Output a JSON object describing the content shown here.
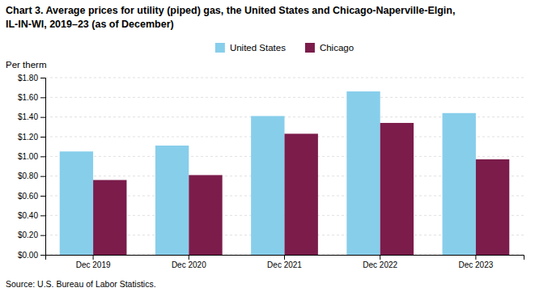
{
  "chart_data": {
    "type": "bar",
    "title": [
      "Chart 3. Average prices for utility (piped) gas, the United States and Chicago-Naperville-Elgin,",
      "IL-IN-WI, 2019–23 (as of December)"
    ],
    "ylabel": "Per therm",
    "source": "Source: U.S. Bureau of Labor Statistics.",
    "categories": [
      "Dec 2019",
      "Dec 2020",
      "Dec 2021",
      "Dec 2022",
      "Dec 2023"
    ],
    "series": [
      {
        "name": "United States",
        "color": "#87CEEB",
        "values": [
          1.05,
          1.11,
          1.41,
          1.66,
          1.44
        ]
      },
      {
        "name": "Chicago",
        "color": "#7B1C4B",
        "values": [
          0.76,
          0.81,
          1.23,
          1.34,
          0.97
        ]
      }
    ],
    "ylim": [
      0,
      1.8
    ],
    "yticks": [
      {
        "value": 0.0,
        "label": "$0.00"
      },
      {
        "value": 0.2,
        "label": "$0.20"
      },
      {
        "value": 0.4,
        "label": "$0.40"
      },
      {
        "value": 0.6,
        "label": "$0.60"
      },
      {
        "value": 0.8,
        "label": "$0.80"
      },
      {
        "value": 1.0,
        "label": "$1.00"
      },
      {
        "value": 1.2,
        "label": "$1.20"
      },
      {
        "value": 1.4,
        "label": "$1.40"
      },
      {
        "value": 1.6,
        "label": "$1.60"
      },
      {
        "value": 1.8,
        "label": "$1.80"
      }
    ],
    "grid": true,
    "legend": "top"
  }
}
